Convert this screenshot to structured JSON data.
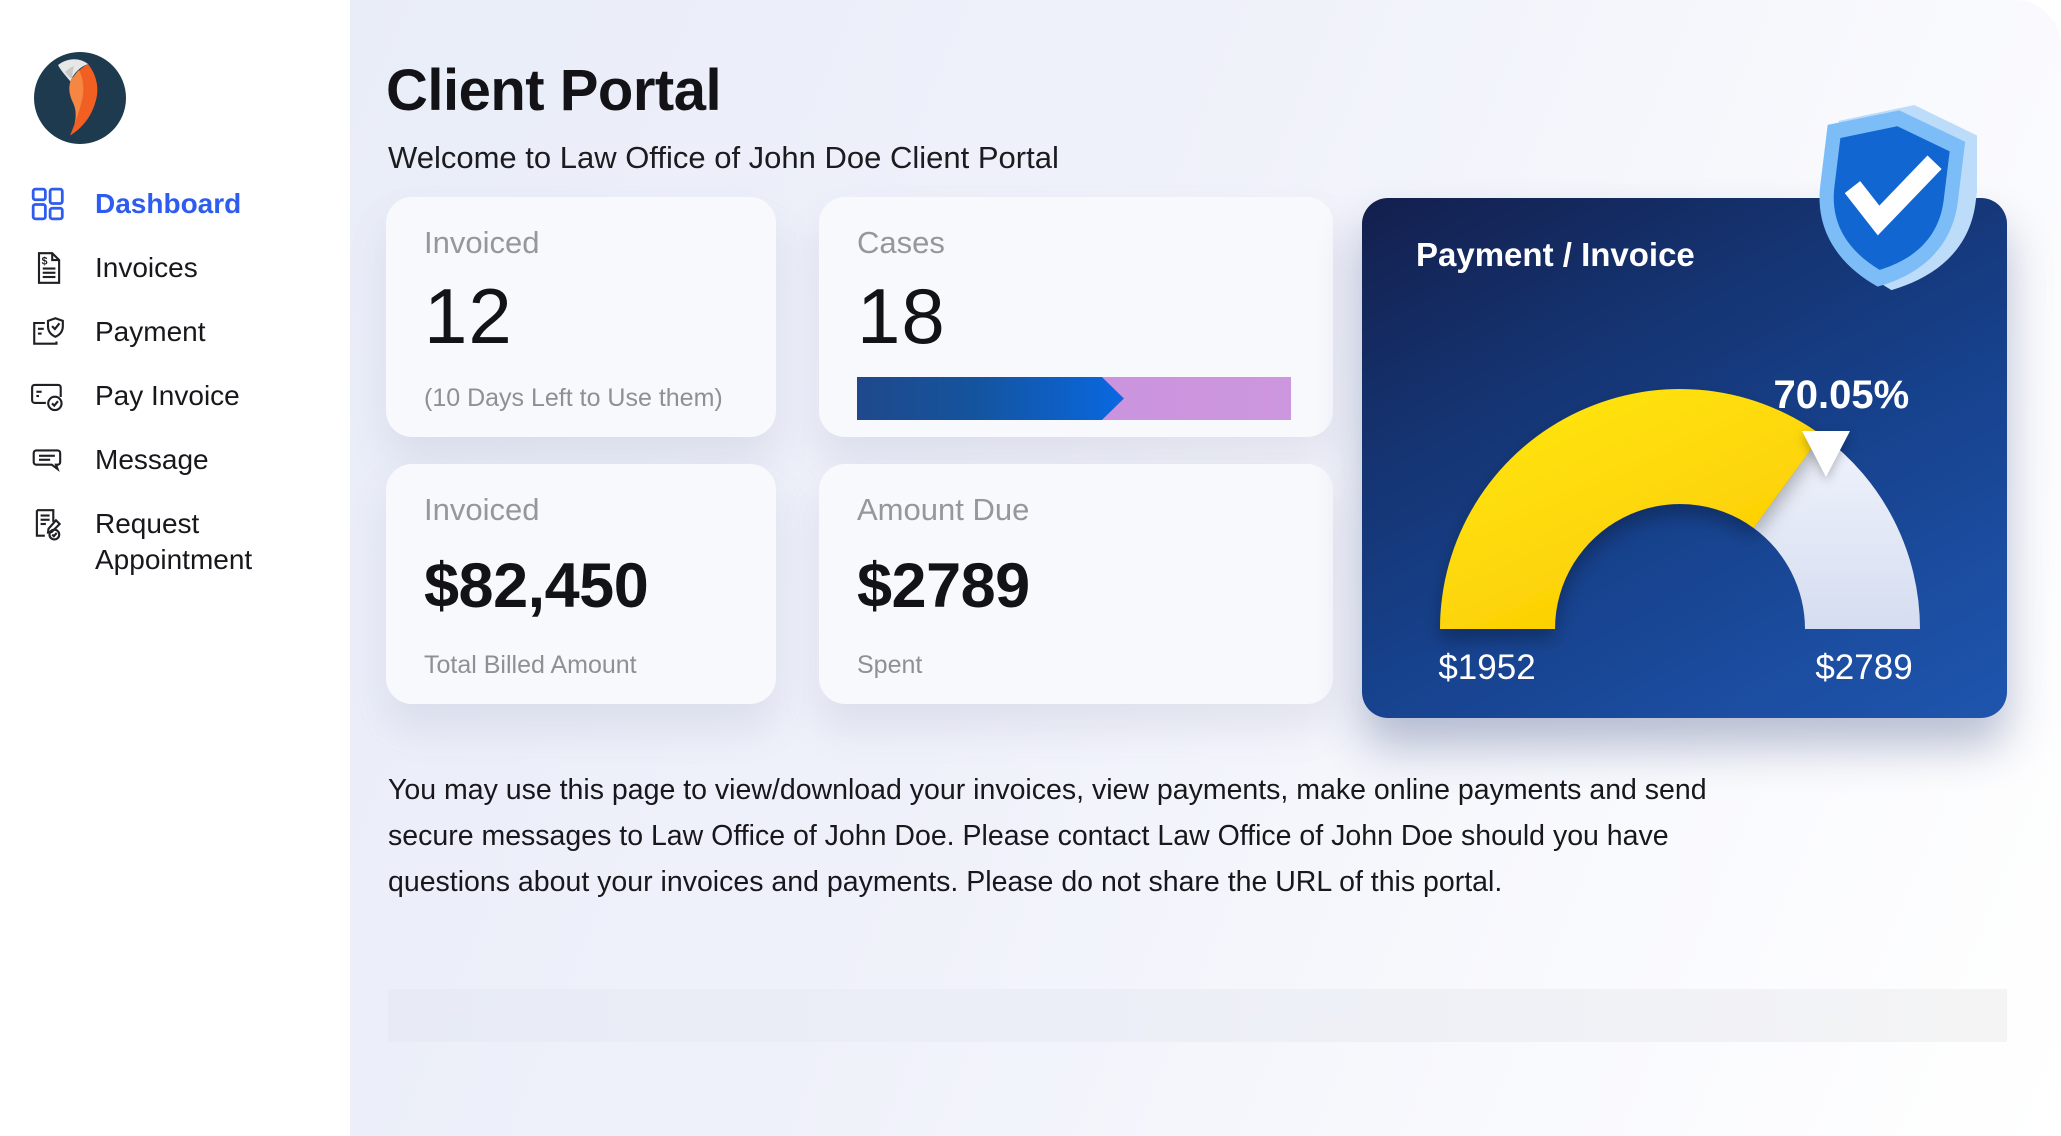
{
  "sidebar": {
    "logo_name": "law-firm-logo",
    "active_color": "#2e5bf0",
    "items": [
      {
        "label": "Dashboard",
        "icon": "dashboard-grid-icon",
        "active": true
      },
      {
        "label": "Invoices",
        "icon": "invoice-document-icon",
        "active": false
      },
      {
        "label": "Payment",
        "icon": "payment-shield-icon",
        "active": false
      },
      {
        "label": "Pay Invoice",
        "icon": "credit-card-check-icon",
        "active": false
      },
      {
        "label": "Message",
        "icon": "chat-bubbles-icon",
        "active": false
      },
      {
        "label": "Request Appointment",
        "icon": "appointment-request-icon",
        "active": false
      }
    ]
  },
  "header": {
    "title": "Client Portal",
    "subtitle": "Welcome to Law Office of John Doe Client Portal"
  },
  "cards": {
    "invoiced_count": {
      "label": "Invoiced",
      "value": "12",
      "note": "(10 Days Left to Use them)"
    },
    "cases": {
      "label": "Cases",
      "value": "18",
      "progress_percent": 61.5,
      "bar_fill_colors": [
        "#20488b",
        "#0968e2"
      ],
      "bar_track_color": "#c88edb"
    },
    "invoiced_amount": {
      "label": "Invoiced",
      "value": "$82,450",
      "note": "Total Billed Amount"
    },
    "amount_due": {
      "label": "Amount Due",
      "value": "$2789",
      "note": "Spent"
    },
    "payment_invoice": {
      "title": "Payment / Invoice",
      "background_colors": [
        "#131f4d",
        "#1e55ad"
      ],
      "gauge": {
        "type": "gauge",
        "percent": 70.05,
        "percent_label": "70.05%",
        "left_value": "$1952",
        "right_value": "$2789",
        "filled_color": "#ffdf00",
        "track_color": "#dde4f4"
      },
      "badge": "verified-shield-check"
    }
  },
  "description": "You may use this page to view/download your invoices, view payments, make online payments and send secure messages to Law Office of John Doe. Please contact Law Office of John Doe should you have questions about your invoices and payments. Please do not share the URL of this portal."
}
